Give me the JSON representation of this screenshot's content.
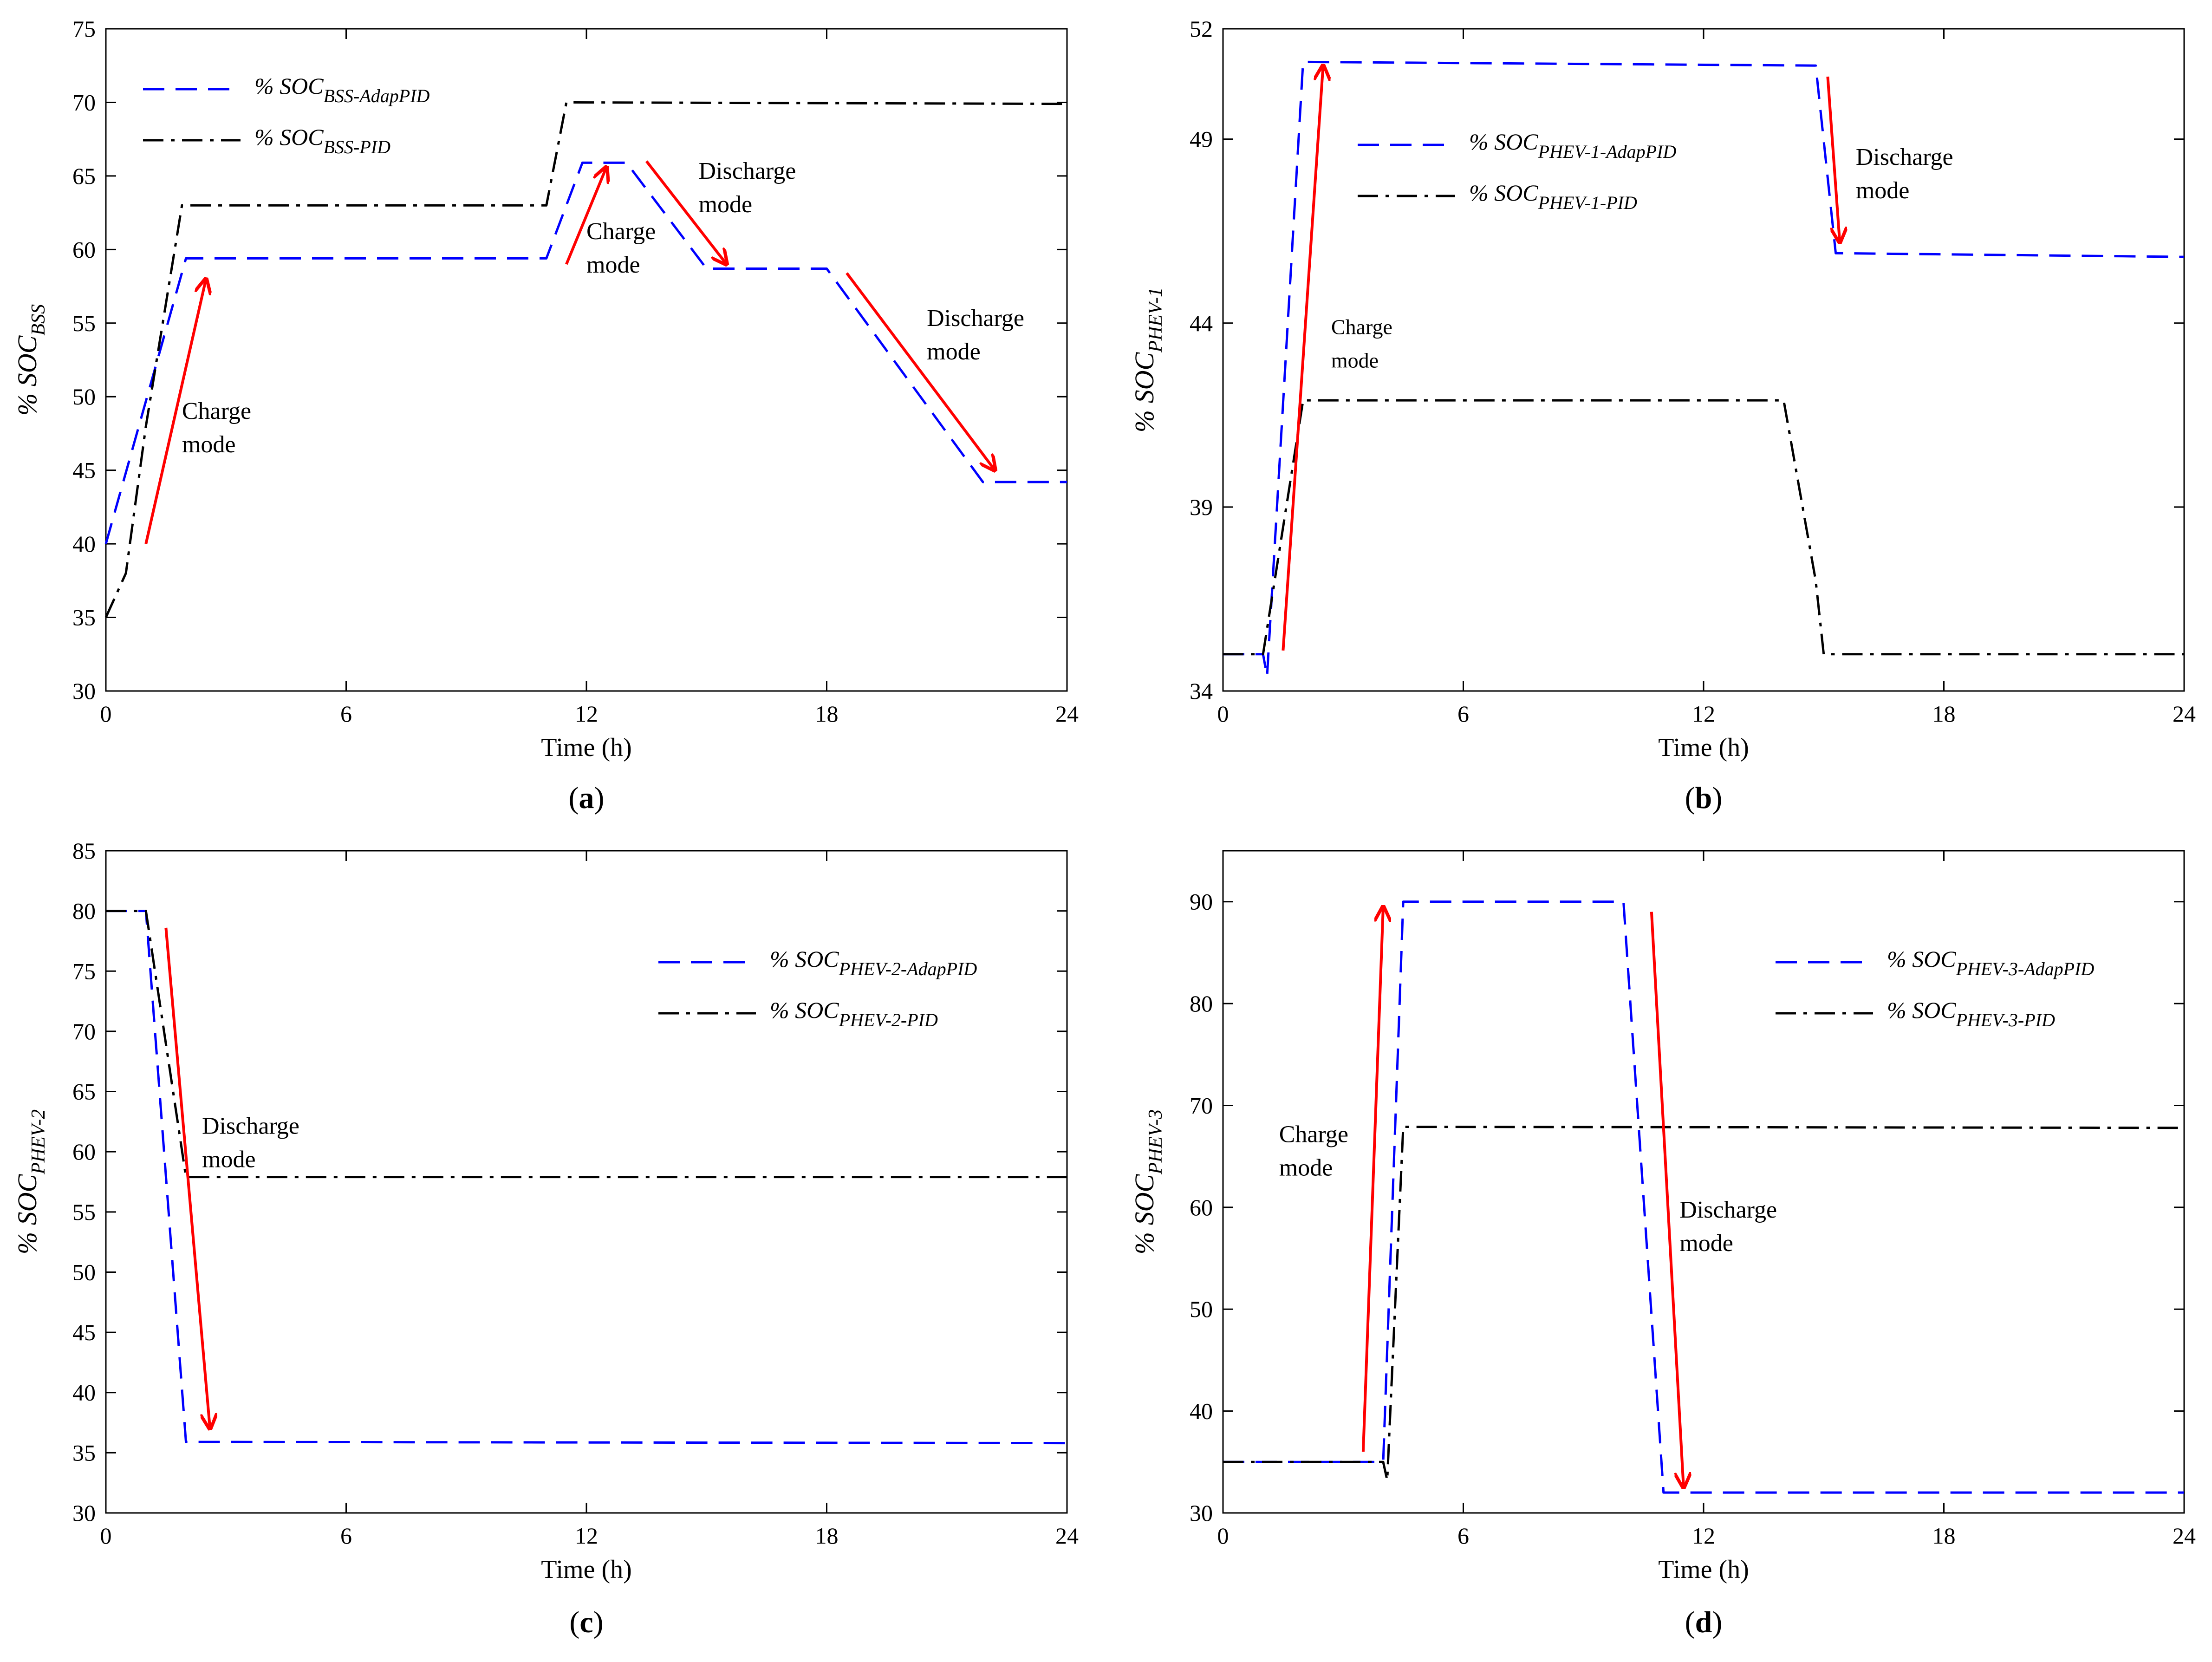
{
  "colors": {
    "adap": "#0000ff",
    "pid": "#000000",
    "arrow": "#ff0000"
  },
  "chart_data": [
    {
      "type": "line",
      "caption": "a",
      "xlabel": "Time (h)",
      "ylabel": {
        "main": "% SOC",
        "sub": "BSS"
      },
      "xlim": [
        0,
        24
      ],
      "ylim": [
        30,
        75
      ],
      "xticks": [
        0,
        6,
        12,
        18,
        24
      ],
      "yticks": [
        30,
        35,
        40,
        45,
        50,
        55,
        60,
        65,
        70,
        75
      ],
      "legend_position": "top-left",
      "series": [
        {
          "name": "% SOC",
          "sub": "BSS-AdapPID",
          "style": "dashed",
          "color": "#0000ff",
          "x": [
            0,
            2,
            11,
            11.9,
            13,
            15,
            18,
            21.9,
            24
          ],
          "y": [
            40,
            59.4,
            59.4,
            65.9,
            65.9,
            58.7,
            58.7,
            44.2,
            44.2
          ]
        },
        {
          "name": "% SOC",
          "sub": "BSS-PID",
          "style": "dashdot",
          "color": "#000000",
          "x": [
            0,
            0.5,
            1,
            1.9,
            11,
            11.5,
            24
          ],
          "y": [
            35,
            38,
            48,
            63,
            63,
            70,
            69.9
          ]
        }
      ],
      "annotations": [
        {
          "lines": [
            "Charge",
            "mode"
          ],
          "x": 1.9,
          "y": 48.5,
          "arrow": [
            1,
            40,
            2.5,
            58
          ]
        },
        {
          "lines": [
            "Charge",
            "mode"
          ],
          "x": 12,
          "y": 60.7,
          "arrow": [
            11.5,
            59,
            12.5,
            65.6
          ]
        },
        {
          "lines": [
            "Discharge",
            "mode"
          ],
          "x": 14.8,
          "y": 64.8,
          "arrow": [
            13.5,
            66,
            15.5,
            59
          ]
        },
        {
          "lines": [
            "Discharge",
            "mode"
          ],
          "x": 20.5,
          "y": 54.8,
          "arrow": [
            18.5,
            58.4,
            22.2,
            45
          ]
        }
      ]
    },
    {
      "type": "line",
      "caption": "b",
      "xlabel": "Time (h)",
      "ylabel": {
        "main": "% SOC",
        "sub": "PHEV-1"
      },
      "xlim": [
        0,
        24
      ],
      "ylim": [
        34,
        52
      ],
      "xticks": [
        0,
        6,
        12,
        18,
        24
      ],
      "yticks": [
        34,
        39,
        44,
        49,
        52
      ],
      "legend_position": "center-left",
      "series": [
        {
          "name": "% SOC",
          "sub": "PHEV-1-AdapPID",
          "style": "dashed",
          "color": "#0000ff",
          "x": [
            0,
            1,
            1.1,
            2,
            14.8,
            15.3,
            24
          ],
          "y": [
            35,
            35,
            34.4,
            51.1,
            51,
            45.9,
            45.8
          ]
        },
        {
          "name": "% SOC",
          "sub": "PHEV-1-PID",
          "style": "dashdot",
          "color": "#000000",
          "x": [
            0,
            1,
            2,
            14,
            14.8,
            15,
            24
          ],
          "y": [
            35,
            35,
            41.9,
            41.9,
            37,
            35,
            35
          ]
        }
      ],
      "annotations": [
        {
          "lines": [
            "Charge",
            "mode"
          ],
          "x": 2.7,
          "y": 43.7,
          "small": true,
          "arrow": [
            1.5,
            35.1,
            2.5,
            51
          ]
        },
        {
          "lines": [
            "Discharge",
            "mode"
          ],
          "x": 15.8,
          "y": 48.3,
          "arrow": [
            15.1,
            50.7,
            15.4,
            46.2
          ]
        }
      ]
    },
    {
      "type": "line",
      "caption": "c",
      "xlabel": "Time (h)",
      "ylabel": {
        "main": "% SOC",
        "sub": "PHEV-2"
      },
      "xlim": [
        0,
        24
      ],
      "ylim": [
        30,
        85
      ],
      "xticks": [
        0,
        6,
        12,
        18,
        24
      ],
      "yticks": [
        30,
        35,
        40,
        45,
        50,
        55,
        60,
        65,
        70,
        75,
        80,
        85
      ],
      "legend_position": "top-right",
      "series": [
        {
          "name": "% SOC",
          "sub": "PHEV-2-AdapPID",
          "style": "dashed",
          "color": "#0000ff",
          "x": [
            0,
            1,
            2,
            24
          ],
          "y": [
            80,
            80,
            35.9,
            35.8
          ]
        },
        {
          "name": "% SOC",
          "sub": "PHEV-2-PID",
          "style": "dashdot",
          "color": "#000000",
          "x": [
            0,
            1,
            2,
            24
          ],
          "y": [
            80,
            80,
            57.9,
            57.9
          ]
        }
      ],
      "annotations": [
        {
          "lines": [
            "Discharge",
            "mode"
          ],
          "x": 2.4,
          "y": 61.5,
          "arrow": [
            1.5,
            78.6,
            2.6,
            37
          ]
        }
      ]
    },
    {
      "type": "line",
      "caption": "d",
      "xlabel": "Time (h)",
      "ylabel": {
        "main": "% SOC",
        "sub": "PHEV-3"
      },
      "xlim": [
        0,
        24
      ],
      "ylim": [
        30,
        95
      ],
      "xticks": [
        0,
        6,
        12,
        18,
        24
      ],
      "yticks": [
        30,
        40,
        50,
        60,
        70,
        80,
        90
      ],
      "legend_position": "top-right",
      "series": [
        {
          "name": "% SOC",
          "sub": "PHEV-3-AdapPID",
          "style": "dashed",
          "color": "#0000ff",
          "x": [
            0,
            4,
            4.5,
            10,
            11,
            24
          ],
          "y": [
            35,
            35,
            90,
            90,
            32,
            32
          ]
        },
        {
          "name": "% SOC",
          "sub": "PHEV-3-PID",
          "style": "dashdot",
          "color": "#000000",
          "x": [
            0,
            4,
            4.1,
            4.5,
            24
          ],
          "y": [
            35,
            35,
            33.2,
            67.9,
            67.8
          ]
        }
      ],
      "annotations": [
        {
          "lines": [
            "Charge",
            "mode"
          ],
          "x": 1.4,
          "y": 66.4,
          "arrow": [
            3.5,
            36,
            4,
            89.5
          ]
        },
        {
          "lines": [
            "Discharge",
            "mode"
          ],
          "x": 11.4,
          "y": 59,
          "arrow": [
            10.7,
            89,
            11.5,
            32.5
          ]
        }
      ]
    }
  ]
}
